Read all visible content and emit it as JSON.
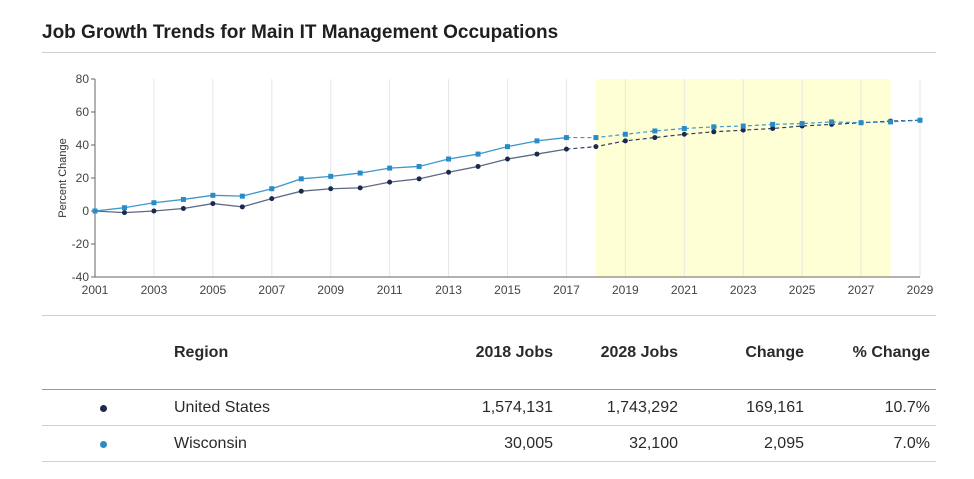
{
  "title": "Job Growth Trends for Main IT Management Occupations",
  "chart_data": {
    "type": "line",
    "ylabel": "Percent Change",
    "ylim": [
      -40,
      80
    ],
    "yticks": [
      80,
      60,
      40,
      20,
      0,
      -20,
      -40
    ],
    "xlim": [
      2001,
      2029
    ],
    "xticks": [
      "2001",
      "2003",
      "2005",
      "2007",
      "2009",
      "2011",
      "2013",
      "2015",
      "2017",
      "2019",
      "2021",
      "2023",
      "2025",
      "2027",
      "2029"
    ],
    "projection_shading": [
      2018,
      2028
    ],
    "series": [
      {
        "name": "United States",
        "color": "#1a2a4f",
        "marker": "circle",
        "x": [
          2001,
          2002,
          2003,
          2004,
          2005,
          2006,
          2007,
          2008,
          2009,
          2010,
          2011,
          2012,
          2013,
          2014,
          2015,
          2016,
          2017,
          2018,
          2019,
          2020,
          2021,
          2022,
          2023,
          2024,
          2025,
          2026,
          2027,
          2028,
          2029
        ],
        "values": [
          0,
          -1,
          0,
          1.5,
          4.5,
          2.5,
          7.5,
          12,
          13.5,
          14,
          17.5,
          19.5,
          23.5,
          27,
          31.5,
          34.5,
          37.5,
          39,
          42.5,
          44.5,
          46.5,
          48,
          49,
          50,
          51.5,
          52.5,
          53.5,
          54.5,
          55
        ]
      },
      {
        "name": "Wisconsin",
        "color": "#2a8cc7",
        "marker": "square",
        "x": [
          2001,
          2002,
          2003,
          2004,
          2005,
          2006,
          2007,
          2008,
          2009,
          2010,
          2011,
          2012,
          2013,
          2014,
          2015,
          2016,
          2017,
          2018,
          2019,
          2020,
          2021,
          2022,
          2023,
          2024,
          2025,
          2026,
          2027,
          2028,
          2029
        ],
        "values": [
          0,
          2,
          5,
          7,
          9.5,
          9,
          13.5,
          19.5,
          21,
          23,
          26,
          27,
          31.5,
          34.5,
          39,
          42.5,
          44.5,
          44.5,
          46.5,
          48.5,
          50,
          51,
          51.5,
          52.5,
          53,
          54,
          53.5,
          54,
          55
        ]
      }
    ]
  },
  "table": {
    "headers": {
      "region": "Region",
      "jobs2018": "2018 Jobs",
      "jobs2028": "2028 Jobs",
      "change": "Change",
      "pct": "% Change"
    },
    "rows": [
      {
        "region": "United States",
        "jobs2018": "1,574,131",
        "jobs2028": "1,743,292",
        "change": "169,161",
        "pct": "10.7%",
        "color": "#1a2a4f"
      },
      {
        "region": "Wisconsin",
        "jobs2018": "30,005",
        "jobs2028": "32,100",
        "change": "2,095",
        "pct": "7.0%",
        "color": "#2a8cc7"
      }
    ]
  }
}
